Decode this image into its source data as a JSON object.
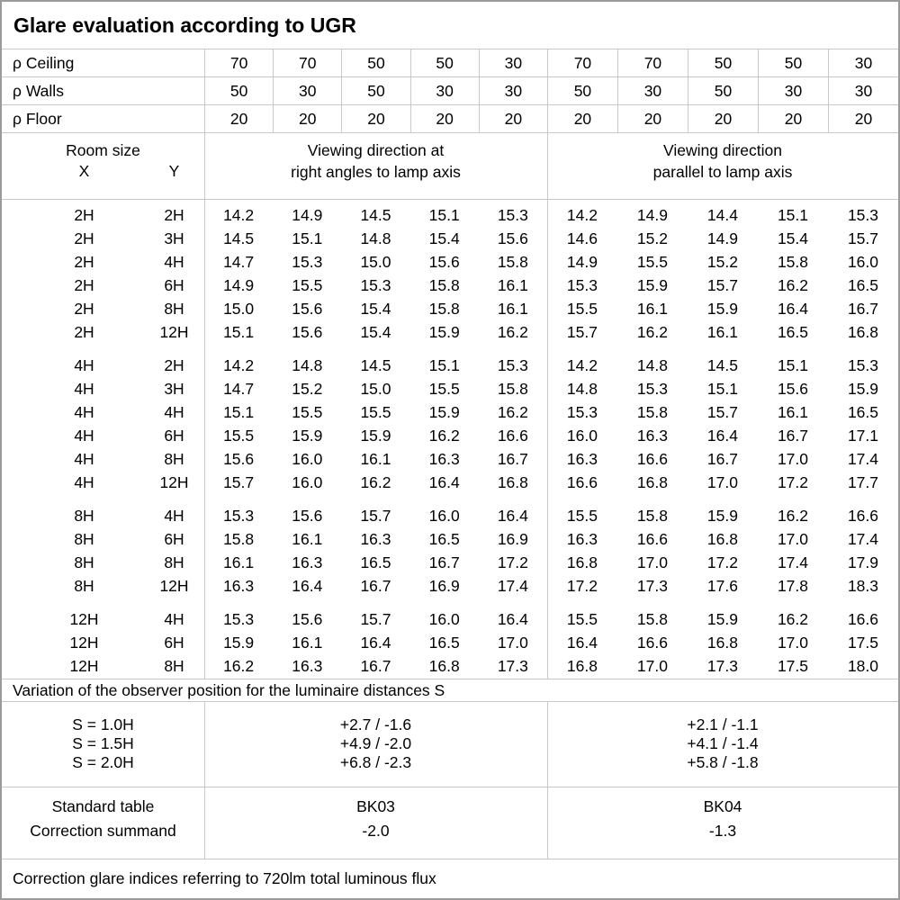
{
  "title": "Glare evaluation according to UGR",
  "reflectance_rows": [
    {
      "label": "ρ Ceiling",
      "values": [
        "70",
        "70",
        "50",
        "50",
        "30",
        "70",
        "70",
        "50",
        "50",
        "30"
      ]
    },
    {
      "label": "ρ Walls",
      "values": [
        "50",
        "30",
        "50",
        "30",
        "30",
        "50",
        "30",
        "50",
        "30",
        "30"
      ]
    },
    {
      "label": "ρ Floor",
      "values": [
        "20",
        "20",
        "20",
        "20",
        "20",
        "20",
        "20",
        "20",
        "20",
        "20"
      ]
    }
  ],
  "header": {
    "room_size": "Room size",
    "x": "X",
    "y": "Y",
    "viewing_right": [
      "Viewing direction at",
      "right angles to lamp axis"
    ],
    "viewing_parallel": [
      "Viewing direction",
      "parallel to lamp axis"
    ]
  },
  "groups": [
    {
      "rows": [
        {
          "x": "2H",
          "y": "2H",
          "right": [
            "14.2",
            "14.9",
            "14.5",
            "15.1",
            "15.3"
          ],
          "parallel": [
            "14.2",
            "14.9",
            "14.4",
            "15.1",
            "15.3"
          ]
        },
        {
          "x": "2H",
          "y": "3H",
          "right": [
            "14.5",
            "15.1",
            "14.8",
            "15.4",
            "15.6"
          ],
          "parallel": [
            "14.6",
            "15.2",
            "14.9",
            "15.4",
            "15.7"
          ]
        },
        {
          "x": "2H",
          "y": "4H",
          "right": [
            "14.7",
            "15.3",
            "15.0",
            "15.6",
            "15.8"
          ],
          "parallel": [
            "14.9",
            "15.5",
            "15.2",
            "15.8",
            "16.0"
          ]
        },
        {
          "x": "2H",
          "y": "6H",
          "right": [
            "14.9",
            "15.5",
            "15.3",
            "15.8",
            "16.1"
          ],
          "parallel": [
            "15.3",
            "15.9",
            "15.7",
            "16.2",
            "16.5"
          ]
        },
        {
          "x": "2H",
          "y": "8H",
          "right": [
            "15.0",
            "15.6",
            "15.4",
            "15.8",
            "16.1"
          ],
          "parallel": [
            "15.5",
            "16.1",
            "15.9",
            "16.4",
            "16.7"
          ]
        },
        {
          "x": "2H",
          "y": "12H",
          "right": [
            "15.1",
            "15.6",
            "15.4",
            "15.9",
            "16.2"
          ],
          "parallel": [
            "15.7",
            "16.2",
            "16.1",
            "16.5",
            "16.8"
          ]
        }
      ]
    },
    {
      "rows": [
        {
          "x": "4H",
          "y": "2H",
          "right": [
            "14.2",
            "14.8",
            "14.5",
            "15.1",
            "15.3"
          ],
          "parallel": [
            "14.2",
            "14.8",
            "14.5",
            "15.1",
            "15.3"
          ]
        },
        {
          "x": "4H",
          "y": "3H",
          "right": [
            "14.7",
            "15.2",
            "15.0",
            "15.5",
            "15.8"
          ],
          "parallel": [
            "14.8",
            "15.3",
            "15.1",
            "15.6",
            "15.9"
          ]
        },
        {
          "x": "4H",
          "y": "4H",
          "right": [
            "15.1",
            "15.5",
            "15.5",
            "15.9",
            "16.2"
          ],
          "parallel": [
            "15.3",
            "15.8",
            "15.7",
            "16.1",
            "16.5"
          ]
        },
        {
          "x": "4H",
          "y": "6H",
          "right": [
            "15.5",
            "15.9",
            "15.9",
            "16.2",
            "16.6"
          ],
          "parallel": [
            "16.0",
            "16.3",
            "16.4",
            "16.7",
            "17.1"
          ]
        },
        {
          "x": "4H",
          "y": "8H",
          "right": [
            "15.6",
            "16.0",
            "16.1",
            "16.3",
            "16.7"
          ],
          "parallel": [
            "16.3",
            "16.6",
            "16.7",
            "17.0",
            "17.4"
          ]
        },
        {
          "x": "4H",
          "y": "12H",
          "right": [
            "15.7",
            "16.0",
            "16.2",
            "16.4",
            "16.8"
          ],
          "parallel": [
            "16.6",
            "16.8",
            "17.0",
            "17.2",
            "17.7"
          ]
        }
      ]
    },
    {
      "rows": [
        {
          "x": "8H",
          "y": "4H",
          "right": [
            "15.3",
            "15.6",
            "15.7",
            "16.0",
            "16.4"
          ],
          "parallel": [
            "15.5",
            "15.8",
            "15.9",
            "16.2",
            "16.6"
          ]
        },
        {
          "x": "8H",
          "y": "6H",
          "right": [
            "15.8",
            "16.1",
            "16.3",
            "16.5",
            "16.9"
          ],
          "parallel": [
            "16.3",
            "16.6",
            "16.8",
            "17.0",
            "17.4"
          ]
        },
        {
          "x": "8H",
          "y": "8H",
          "right": [
            "16.1",
            "16.3",
            "16.5",
            "16.7",
            "17.2"
          ],
          "parallel": [
            "16.8",
            "17.0",
            "17.2",
            "17.4",
            "17.9"
          ]
        },
        {
          "x": "8H",
          "y": "12H",
          "right": [
            "16.3",
            "16.4",
            "16.7",
            "16.9",
            "17.4"
          ],
          "parallel": [
            "17.2",
            "17.3",
            "17.6",
            "17.8",
            "18.3"
          ]
        }
      ]
    },
    {
      "rows": [
        {
          "x": "12H",
          "y": "4H",
          "right": [
            "15.3",
            "15.6",
            "15.7",
            "16.0",
            "16.4"
          ],
          "parallel": [
            "15.5",
            "15.8",
            "15.9",
            "16.2",
            "16.6"
          ]
        },
        {
          "x": "12H",
          "y": "6H",
          "right": [
            "15.9",
            "16.1",
            "16.4",
            "16.5",
            "17.0"
          ],
          "parallel": [
            "16.4",
            "16.6",
            "16.8",
            "17.0",
            "17.5"
          ]
        },
        {
          "x": "12H",
          "y": "8H",
          "right": [
            "16.2",
            "16.3",
            "16.7",
            "16.8",
            "17.3"
          ],
          "parallel": [
            "16.8",
            "17.0",
            "17.3",
            "17.5",
            "18.0"
          ]
        }
      ]
    }
  ],
  "variation": {
    "caption": "Variation of the observer position for the luminaire distances S",
    "rows": [
      {
        "s": "S = 1.0H",
        "right": "+2.7 / -1.6",
        "parallel": "+2.1 / -1.1"
      },
      {
        "s": "S = 1.5H",
        "right": "+4.9 / -2.0",
        "parallel": "+4.1 / -1.4"
      },
      {
        "s": "S = 2.0H",
        "right": "+6.8 / -2.3",
        "parallel": "+5.8 / -1.8"
      }
    ]
  },
  "standard": {
    "row_labels": [
      "Standard table",
      "Correction summand"
    ],
    "right_angles": {
      "table": "BK03",
      "summand": "-2.0"
    },
    "parallel": {
      "table": "BK04",
      "summand": "-1.3"
    }
  },
  "footnote": "Correction glare indices referring to 720lm total luminous flux"
}
